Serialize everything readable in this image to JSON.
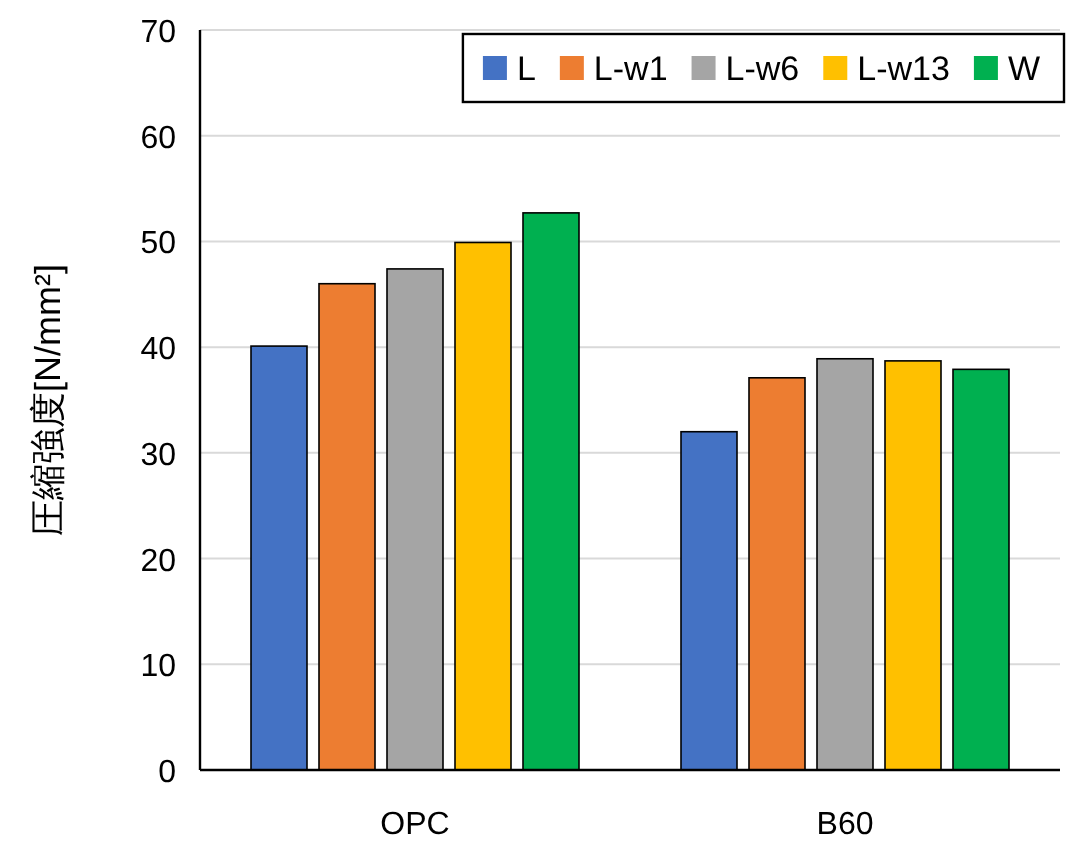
{
  "chart_data": {
    "type": "bar",
    "ylabel": "圧縮強度[N/mm²]",
    "categories": [
      "OPC",
      "B60"
    ],
    "series": [
      {
        "name": "L",
        "color": "#4472c4",
        "values": [
          40.1,
          32.0
        ]
      },
      {
        "name": "L-w1",
        "color": "#ed7d31",
        "values": [
          46.0,
          37.1
        ]
      },
      {
        "name": "L-w6",
        "color": "#a5a5a5",
        "values": [
          47.4,
          38.9
        ]
      },
      {
        "name": "L-w13",
        "color": "#ffc000",
        "values": [
          49.9,
          38.7
        ]
      },
      {
        "name": "W",
        "color": "#00b050",
        "values": [
          52.7,
          37.9
        ]
      }
    ],
    "ylim": [
      0,
      70
    ],
    "yticks": [
      0,
      10,
      20,
      30,
      40,
      50,
      60,
      70
    ],
    "grid": "y",
    "legend": "top right"
  }
}
